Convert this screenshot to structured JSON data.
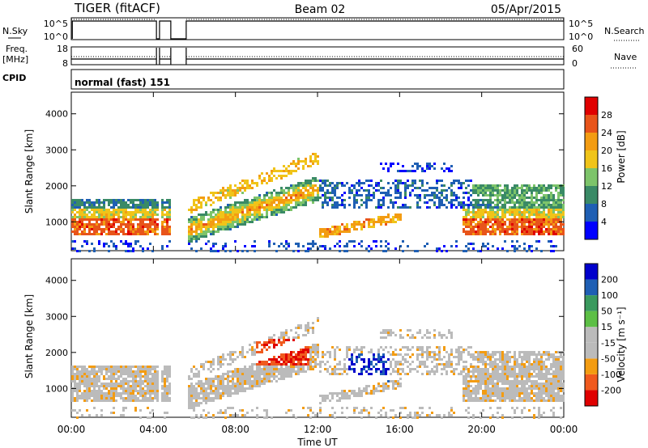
{
  "header": {
    "station": "TIGER (fitACF)",
    "beam": "Beam 02",
    "date": "05/Apr/2015"
  },
  "top_panel": {
    "left_label": "N.Sky",
    "left_ticks": [
      "10^5",
      "10^0"
    ],
    "right_ticks": [
      "10^5",
      "10^0"
    ],
    "right_label": "N.Search"
  },
  "freq_panel": {
    "left_label_line1": "Freq.",
    "left_label_line2": "[MHz]",
    "left_ticks": [
      "18",
      "8"
    ],
    "right_ticks": [
      "60",
      "0"
    ],
    "right_label": "Nave"
  },
  "cpid": {
    "label": "CPID",
    "value": "normal (fast) 151"
  },
  "colors": {
    "power_scale": [
      "#0000ff",
      "#1f5fb4",
      "#3a8a66",
      "#7dc46a",
      "#f0c419",
      "#f39c12",
      "#e8541a",
      "#e00000"
    ],
    "velocity_scale": [
      "#e00000",
      "#f05a1e",
      "#f39c12",
      "#bbbbbb",
      "#bbbbbb",
      "#5cbf45",
      "#3a9a5e",
      "#1f5fb4",
      "#0000cc"
    ]
  },
  "chart_data": [
    {
      "type": "heatmap",
      "name": "power",
      "ylabel": "Slant Range [km]",
      "yticks": [
        "1000",
        "2000",
        "3000",
        "4000"
      ],
      "ylim": [
        200,
        4600
      ],
      "xlim": [
        0,
        24
      ],
      "colorbar": {
        "label": "Power [dB]",
        "ticks": [
          "4",
          "8",
          "12",
          "16",
          "20",
          "24",
          "28"
        ],
        "range": [
          0,
          32
        ]
      }
    },
    {
      "type": "heatmap",
      "name": "velocity",
      "ylabel": "Slant Range [km]",
      "yticks": [
        "1000",
        "2000",
        "3000",
        "4000"
      ],
      "ylim": [
        200,
        4600
      ],
      "xlim": [
        0,
        24
      ],
      "xlabel": "Time UT",
      "xticks": [
        "00:00",
        "04:00",
        "08:00",
        "12:00",
        "16:00",
        "20:00",
        "00:00"
      ],
      "colorbar": {
        "label": "Velocity [m s⁻¹]",
        "ticks": [
          "-200",
          "-100",
          "-50",
          "-15",
          "15",
          "50",
          "100",
          "200"
        ]
      }
    }
  ]
}
